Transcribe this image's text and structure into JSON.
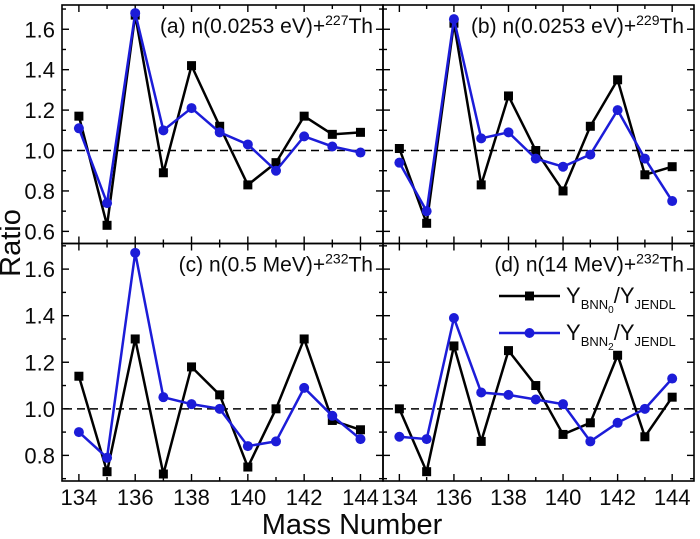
{
  "figure": {
    "xlabel": "Mass Number",
    "ylabel": "Ratio",
    "background": "#ffffff",
    "axis_color": "#000000",
    "reference_line_value": 1.0,
    "xlim": [
      133.4,
      144.8
    ],
    "x_ticks": [
      134,
      136,
      138,
      140,
      142,
      144
    ],
    "x_minor_ticks": [
      135,
      137,
      139,
      141,
      143
    ],
    "mass_numbers": [
      134,
      135,
      136,
      137,
      138,
      139,
      140,
      141,
      142,
      143,
      144
    ],
    "series_colors": {
      "bnn0": "#000000",
      "bnn2": "#1c1cd8"
    }
  },
  "legend": {
    "location": "panel-d top-right",
    "entries": [
      {
        "id": "bnn0",
        "marker": "square",
        "color": "#000000",
        "label_plain": "Y_BNN0 / Y_JENDL",
        "parts": [
          {
            "t": "Y",
            "s": "base"
          },
          {
            "t": "BNN",
            "s": "sub"
          },
          {
            "t": "0",
            "s": "subsub"
          },
          {
            "t": "/Y",
            "s": "base"
          },
          {
            "t": "JENDL",
            "s": "sub"
          }
        ]
      },
      {
        "id": "bnn2",
        "marker": "circle",
        "color": "#1c1cd8",
        "label_plain": "Y_BNN2 / Y_JENDL",
        "parts": [
          {
            "t": "Y",
            "s": "base"
          },
          {
            "t": "BNN",
            "s": "sub"
          },
          {
            "t": "2",
            "s": "subsub"
          },
          {
            "t": "/Y",
            "s": "base"
          },
          {
            "t": "JENDL",
            "s": "sub"
          }
        ]
      }
    ]
  },
  "chart_data": [
    {
      "type": "line",
      "panel": "a",
      "title_plain": "(a) n(0.0253 eV)+227Th",
      "title_parts": [
        {
          "t": "(a) n(0.0253 eV)+",
          "s": "base"
        },
        {
          "t": "227",
          "s": "sup"
        },
        {
          "t": "Th",
          "s": "base"
        }
      ],
      "x": [
        134,
        135,
        136,
        137,
        138,
        139,
        140,
        141,
        142,
        143,
        144
      ],
      "ylim": [
        0.54,
        1.72
      ],
      "yticks": [
        0.6,
        0.8,
        1.0,
        1.2,
        1.4,
        1.6
      ],
      "y_minor_ticks": [
        0.7,
        0.9,
        1.1,
        1.3,
        1.5,
        1.7
      ],
      "series": [
        {
          "name": "Y_BNN0/Y_JENDL",
          "marker": "square",
          "color": "#000000",
          "values": [
            1.17,
            0.63,
            1.67,
            0.89,
            1.42,
            1.12,
            0.83,
            0.94,
            1.17,
            1.08,
            1.09
          ]
        },
        {
          "name": "Y_BNN2/Y_JENDL",
          "marker": "circle",
          "color": "#1c1cd8",
          "values": [
            1.11,
            0.74,
            1.68,
            1.1,
            1.21,
            1.09,
            1.03,
            0.9,
            1.07,
            1.02,
            0.99
          ]
        }
      ]
    },
    {
      "type": "line",
      "panel": "b",
      "title_plain": "(b) n(0.0253 eV)+229Th",
      "title_parts": [
        {
          "t": "(b) n(0.0253 eV)+",
          "s": "base"
        },
        {
          "t": "229",
          "s": "sup"
        },
        {
          "t": "Th",
          "s": "base"
        }
      ],
      "x": [
        134,
        135,
        136,
        137,
        138,
        139,
        140,
        141,
        142,
        143,
        144
      ],
      "ylim": [
        0.54,
        1.72
      ],
      "yticks": [
        0.6,
        0.8,
        1.0,
        1.2,
        1.4,
        1.6
      ],
      "y_minor_ticks": [
        0.7,
        0.9,
        1.1,
        1.3,
        1.5,
        1.7
      ],
      "series": [
        {
          "name": "Y_BNN0/Y_JENDL",
          "marker": "square",
          "color": "#000000",
          "values": [
            1.01,
            0.64,
            1.63,
            0.83,
            1.27,
            1.0,
            0.8,
            1.12,
            1.35,
            0.88,
            0.92
          ]
        },
        {
          "name": "Y_BNN2/Y_JENDL",
          "marker": "circle",
          "color": "#1c1cd8",
          "values": [
            0.94,
            0.7,
            1.65,
            1.06,
            1.09,
            0.96,
            0.92,
            0.98,
            1.2,
            0.96,
            0.75
          ]
        }
      ]
    },
    {
      "type": "line",
      "panel": "c",
      "title_plain": "(c) n(0.5 MeV)+232Th",
      "title_parts": [
        {
          "t": "(c) n(0.5 MeV)+",
          "s": "base"
        },
        {
          "t": "232",
          "s": "sup"
        },
        {
          "t": "Th",
          "s": "base"
        }
      ],
      "x": [
        134,
        135,
        136,
        137,
        138,
        139,
        140,
        141,
        142,
        143,
        144
      ],
      "ylim": [
        0.69,
        1.71
      ],
      "yticks": [
        0.8,
        1.0,
        1.2,
        1.4,
        1.6
      ],
      "y_minor_ticks": [
        0.7,
        0.9,
        1.1,
        1.3,
        1.5,
        1.7
      ],
      "series": [
        {
          "name": "Y_BNN0/Y_JENDL",
          "marker": "square",
          "color": "#000000",
          "values": [
            1.14,
            0.73,
            1.3,
            0.72,
            1.18,
            1.06,
            0.75,
            1.0,
            1.3,
            0.95,
            0.91
          ]
        },
        {
          "name": "Y_BNN2/Y_JENDL",
          "marker": "circle",
          "color": "#1c1cd8",
          "values": [
            0.9,
            0.79,
            1.67,
            1.05,
            1.02,
            1.0,
            0.84,
            0.86,
            1.09,
            0.97,
            0.87
          ]
        }
      ]
    },
    {
      "type": "line",
      "panel": "d",
      "title_plain": "(d) n(14 MeV)+232Th",
      "title_parts": [
        {
          "t": "(d) n(14 MeV)+",
          "s": "base"
        },
        {
          "t": "232",
          "s": "sup"
        },
        {
          "t": "Th",
          "s": "base"
        }
      ],
      "x": [
        134,
        135,
        136,
        137,
        138,
        139,
        140,
        141,
        142,
        143,
        144
      ],
      "ylim": [
        0.69,
        1.71
      ],
      "yticks": [
        0.8,
        1.0,
        1.2,
        1.4,
        1.6
      ],
      "y_minor_ticks": [
        0.7,
        0.9,
        1.1,
        1.3,
        1.5,
        1.7
      ],
      "series": [
        {
          "name": "Y_BNN0/Y_JENDL",
          "marker": "square",
          "color": "#000000",
          "values": [
            1.0,
            0.73,
            1.27,
            0.86,
            1.25,
            1.1,
            0.89,
            0.94,
            1.23,
            0.88,
            1.05
          ]
        },
        {
          "name": "Y_BNN2/Y_JENDL",
          "marker": "circle",
          "color": "#1c1cd8",
          "values": [
            0.88,
            0.87,
            1.39,
            1.07,
            1.06,
            1.04,
            1.02,
            0.86,
            0.94,
            1.0,
            1.13
          ]
        }
      ]
    }
  ]
}
